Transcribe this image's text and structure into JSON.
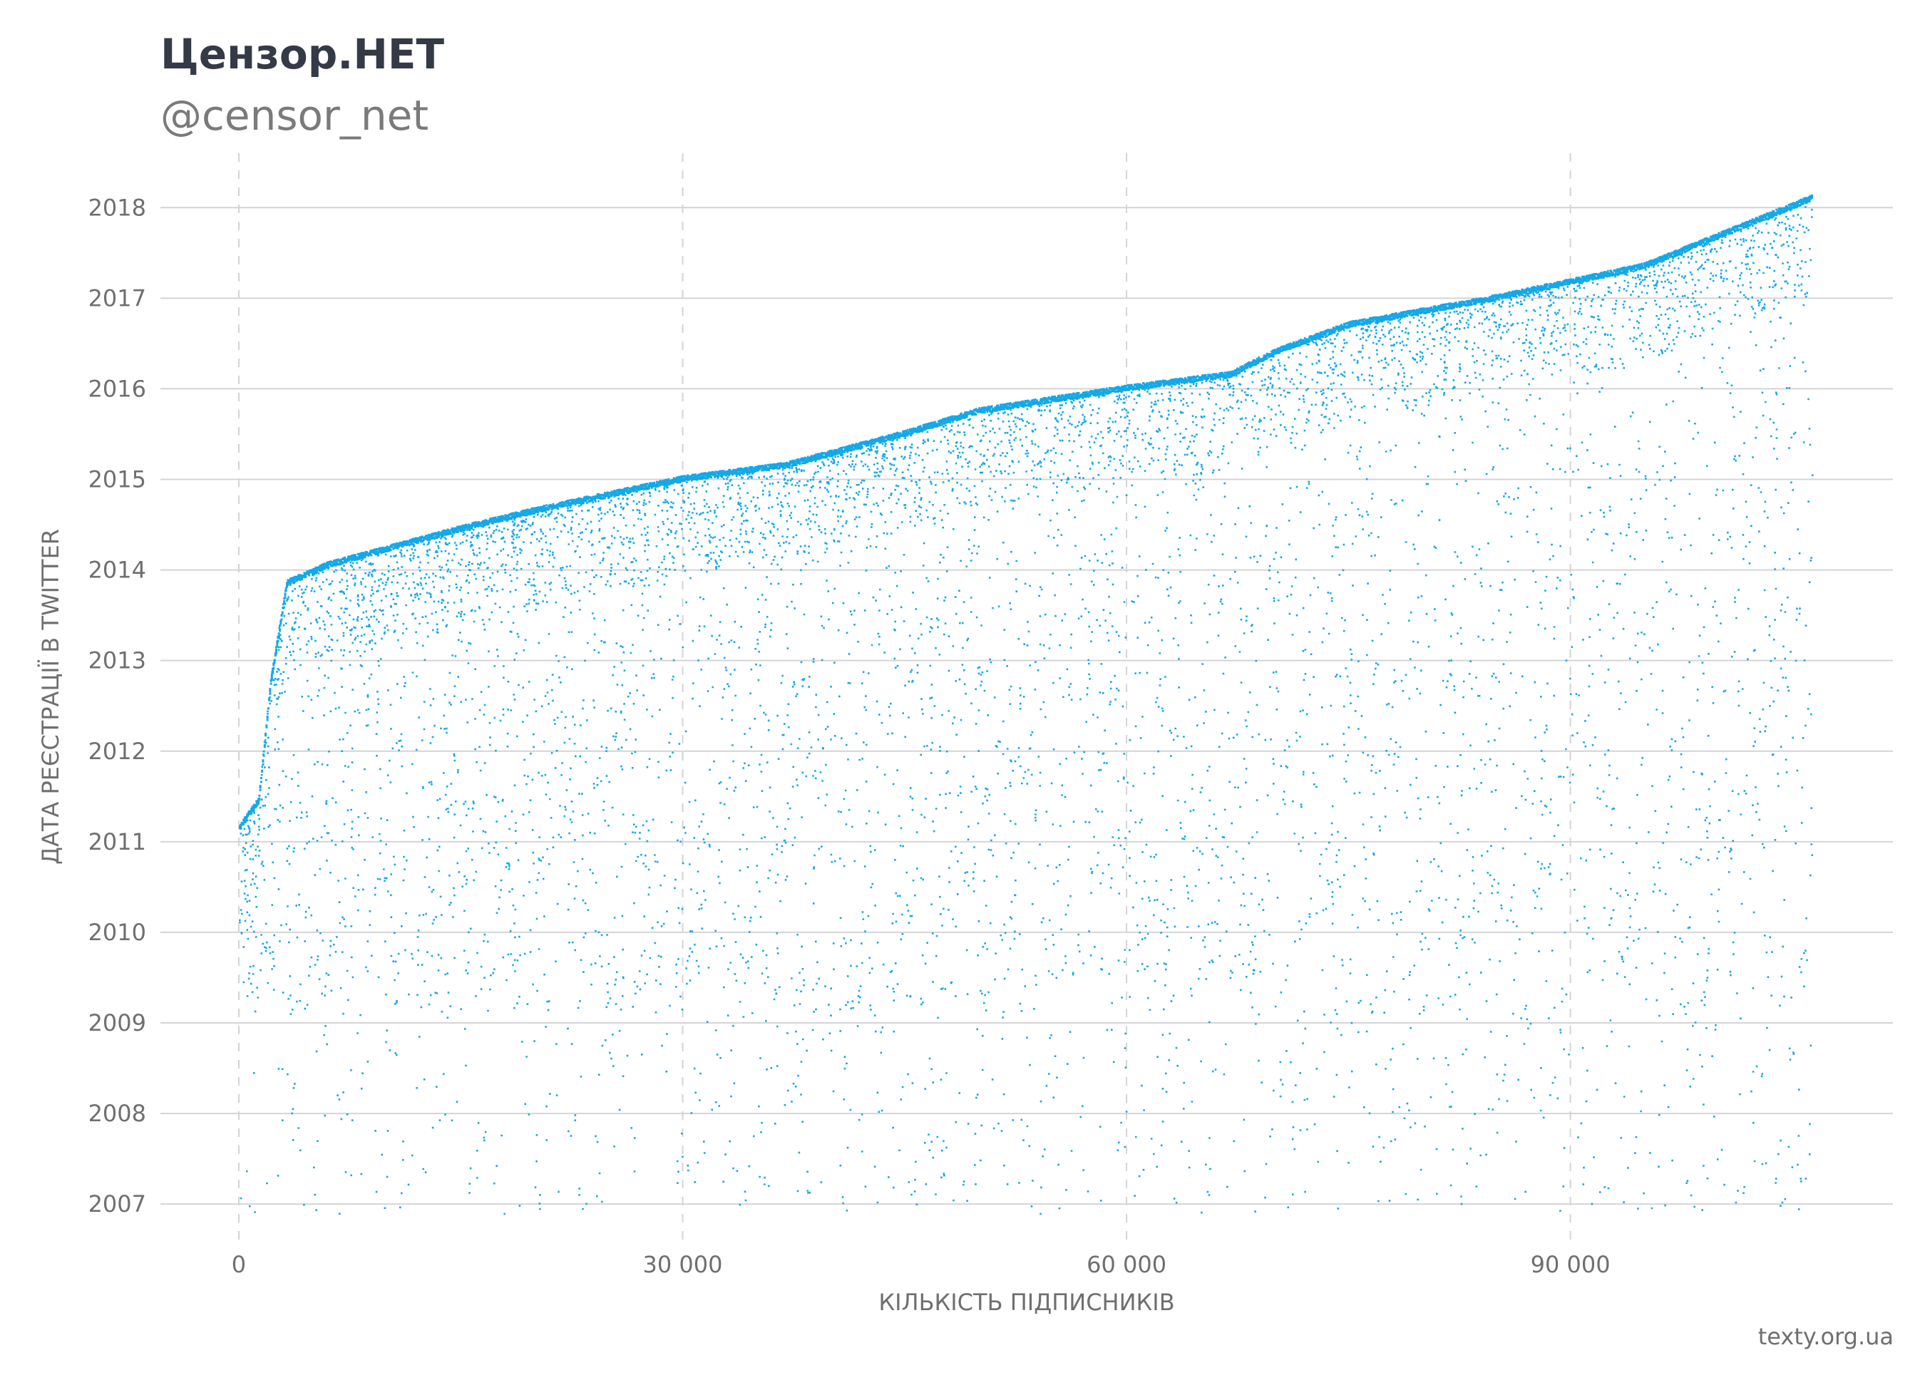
{
  "header": {
    "title": "Цензор.НЕТ",
    "subtitle": "@censor_net"
  },
  "footer": {
    "source": "texty.org.ua"
  },
  "colors": {
    "points": "#13a8e8",
    "grid": "#d4d4d4",
    "text": "#6f6f6f"
  },
  "chart_data": {
    "type": "scatter",
    "xlabel": "КІЛЬКІСТЬ ПІДПИСНИКІВ",
    "ylabel": "ДАТА РЕЄСТРАЦІЇ В TWITTER",
    "xlim": [
      -5300,
      111800
    ],
    "ylim": [
      2006.6,
      2018.6
    ],
    "x_ticks": [
      {
        "value": 0,
        "label": "0"
      },
      {
        "value": 30000,
        "label": "30 000"
      },
      {
        "value": 60000,
        "label": "60 000"
      },
      {
        "value": 90000,
        "label": "90 000"
      }
    ],
    "y_ticks": [
      {
        "value": 2007,
        "label": "2007"
      },
      {
        "value": 2008,
        "label": "2008"
      },
      {
        "value": 2009,
        "label": "2009"
      },
      {
        "value": 2010,
        "label": "2010"
      },
      {
        "value": 2011,
        "label": "2011"
      },
      {
        "value": 2012,
        "label": "2012"
      },
      {
        "value": 2013,
        "label": "2013"
      },
      {
        "value": 2014,
        "label": "2014"
      },
      {
        "value": 2015,
        "label": "2015"
      },
      {
        "value": 2016,
        "label": "2016"
      },
      {
        "value": 2017,
        "label": "2017"
      },
      {
        "value": 2018,
        "label": "2018"
      }
    ],
    "grid": "horizontal solid at y ticks, vertical dashed at x ticks",
    "upper_envelope": [
      [
        0,
        2011.2
      ],
      [
        1300,
        2011.5
      ],
      [
        2100,
        2012.8
      ],
      [
        3200,
        2013.9
      ],
      [
        6000,
        2014.1
      ],
      [
        15000,
        2014.5
      ],
      [
        20000,
        2014.7
      ],
      [
        30000,
        2015.05
      ],
      [
        37000,
        2015.2
      ],
      [
        45000,
        2015.55
      ],
      [
        50000,
        2015.8
      ],
      [
        60000,
        2016.05
      ],
      [
        67000,
        2016.2
      ],
      [
        70000,
        2016.45
      ],
      [
        75000,
        2016.75
      ],
      [
        85000,
        2017.05
      ],
      [
        95000,
        2017.4
      ],
      [
        101000,
        2017.8
      ],
      [
        106300,
        2018.15
      ]
    ],
    "approx_point_count": 106300
  }
}
